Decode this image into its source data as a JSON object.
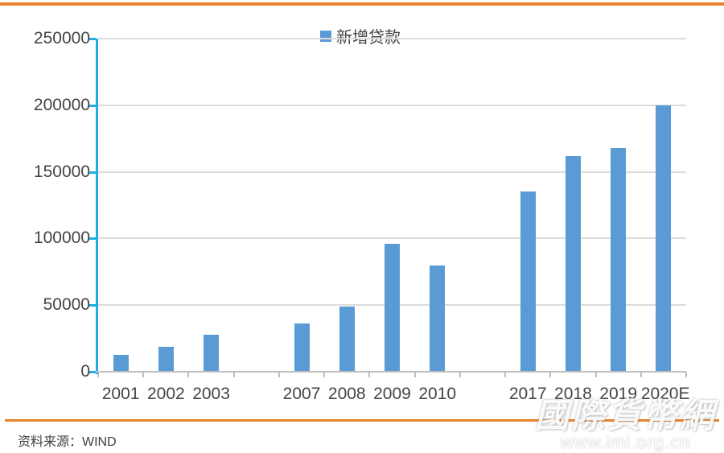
{
  "page": {
    "source_note": "资料来源：WIND"
  },
  "legend": {
    "label": "新增贷款"
  },
  "watermark": {
    "text": "國際貨幣網",
    "url": "www.imi.org.cn"
  },
  "colors": {
    "bar": "#5B9BD5",
    "accent_line": "#E8822A",
    "y_axis": "#22ACE3",
    "x_axis": "#BFBFBF",
    "gridline": "#DBDBDB",
    "text": "#3F3F3F"
  },
  "chart_data": {
    "type": "bar",
    "title": "",
    "series_name": "新增贷款",
    "categories": [
      "2001",
      "2002",
      "2003",
      "",
      "2007",
      "2008",
      "2009",
      "2010",
      "",
      "2017",
      "2018",
      "2019",
      "2020E"
    ],
    "values": [
      12943,
      18475,
      27652,
      null,
      36323,
      49041,
      95940,
      79451,
      null,
      135300,
      161700,
      168100,
      200000
    ],
    "ylim": [
      0,
      250000
    ],
    "yticks": [
      0,
      50000,
      100000,
      150000,
      200000,
      250000
    ],
    "ytick_labels": [
      "0",
      "50000",
      "100000",
      "150000",
      "200000",
      "250000"
    ],
    "grid": true,
    "legend_position": "top-center",
    "xlabel": "",
    "ylabel": ""
  }
}
